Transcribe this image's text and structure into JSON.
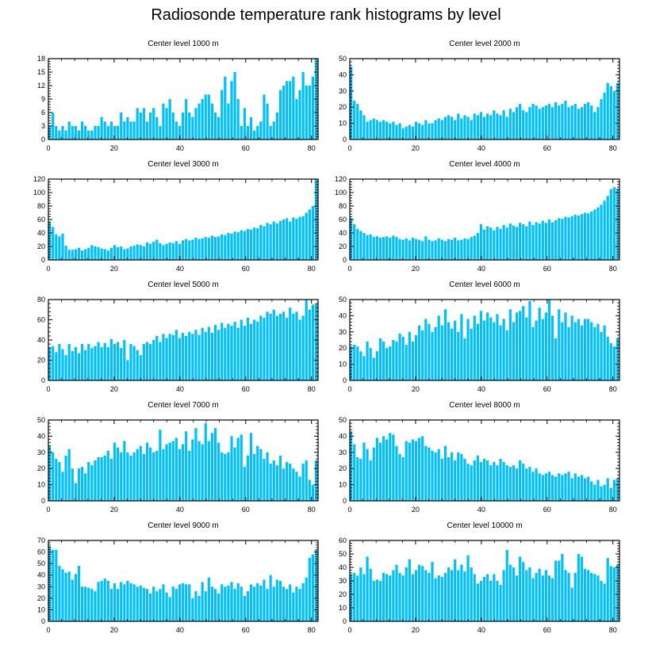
{
  "title": "Radiosonde temperature rank histograms by level",
  "chart_data": [
    {
      "type": "bar",
      "title": "Center level 1000 m",
      "ylim": [
        0,
        18
      ],
      "yticks": [
        0,
        3,
        6,
        9,
        12,
        15,
        18
      ],
      "xlim": [
        0,
        82
      ],
      "xticks": [
        0,
        20,
        40,
        60,
        80
      ],
      "bar_color": "#00bfff",
      "values": [
        3,
        6,
        3,
        2,
        3,
        2,
        4,
        3,
        3,
        2,
        4,
        3,
        2,
        2,
        3,
        3,
        5,
        4,
        3,
        4,
        3,
        3,
        6,
        4,
        5,
        4,
        4,
        7,
        6,
        7,
        4,
        6,
        7,
        5,
        3,
        8,
        7,
        9,
        6,
        4,
        3,
        6,
        9,
        6,
        5,
        7,
        8,
        9,
        10,
        10,
        8,
        6,
        5,
        11,
        14,
        8,
        13,
        15,
        9,
        3,
        7,
        3,
        5,
        2,
        3,
        4,
        10,
        8,
        3,
        4,
        6,
        11,
        12,
        13,
        13,
        14,
        9,
        11,
        15,
        12,
        12,
        14,
        18
      ]
    },
    {
      "type": "bar",
      "title": "Center level 2000 m",
      "ylim": [
        0,
        50
      ],
      "yticks": [
        0,
        10,
        20,
        30,
        40,
        50
      ],
      "xlim": [
        0,
        82
      ],
      "xticks": [
        0,
        20,
        40,
        60,
        80
      ],
      "bar_color": "#00bfff",
      "values": [
        45,
        24,
        22,
        18,
        15,
        11,
        12,
        13,
        12,
        11,
        12,
        11,
        10,
        11,
        9,
        10,
        7,
        8,
        9,
        8,
        11,
        10,
        9,
        12,
        10,
        10,
        12,
        13,
        12,
        14,
        15,
        14,
        12,
        16,
        13,
        15,
        14,
        12,
        16,
        15,
        17,
        14,
        16,
        15,
        18,
        16,
        15,
        18,
        14,
        19,
        17,
        20,
        22,
        18,
        17,
        20,
        22,
        21,
        19,
        20,
        21,
        22,
        20,
        23,
        21,
        22,
        24,
        20,
        21,
        22,
        19,
        20,
        22,
        23,
        21,
        17,
        20,
        25,
        29,
        35,
        33,
        30,
        35
      ]
    },
    {
      "type": "bar",
      "title": "Center level 3000 m",
      "ylim": [
        0,
        120
      ],
      "yticks": [
        0,
        20,
        40,
        60,
        80,
        100,
        120
      ],
      "xlim": [
        0,
        82
      ],
      "xticks": [
        0,
        20,
        40,
        60,
        80
      ],
      "bar_color": "#00bfff",
      "values": [
        57,
        49,
        38,
        35,
        39,
        21,
        15,
        15,
        16,
        18,
        14,
        16,
        18,
        22,
        20,
        19,
        17,
        16,
        14,
        18,
        22,
        19,
        20,
        16,
        17,
        20,
        21,
        23,
        22,
        20,
        26,
        24,
        27,
        30,
        25,
        22,
        24,
        26,
        25,
        28,
        24,
        29,
        31,
        29,
        30,
        33,
        31,
        32,
        34,
        33,
        36,
        34,
        35,
        38,
        37,
        40,
        39,
        42,
        41,
        44,
        43,
        46,
        45,
        48,
        47,
        52,
        50,
        55,
        53,
        57,
        54,
        58,
        60,
        62,
        57,
        63,
        61,
        64,
        65,
        70,
        75,
        80,
        120
      ]
    },
    {
      "type": "bar",
      "title": "Center level 4000 m",
      "ylim": [
        0,
        120
      ],
      "yticks": [
        0,
        20,
        40,
        60,
        80,
        100,
        120
      ],
      "xlim": [
        0,
        82
      ],
      "xticks": [
        0,
        20,
        40,
        60,
        80
      ],
      "bar_color": "#00bfff",
      "values": [
        62,
        53,
        46,
        43,
        40,
        37,
        38,
        34,
        35,
        33,
        34,
        35,
        33,
        36,
        34,
        31,
        30,
        32,
        29,
        33,
        31,
        30,
        28,
        35,
        30,
        28,
        29,
        32,
        30,
        28,
        31,
        30,
        33,
        29,
        30,
        32,
        31,
        34,
        36,
        40,
        53,
        45,
        50,
        48,
        44,
        49,
        46,
        52,
        48,
        54,
        51,
        49,
        55,
        53,
        50,
        57,
        52,
        56,
        54,
        58,
        55,
        60,
        56,
        59,
        62,
        61,
        64,
        63,
        65,
        67,
        66,
        68,
        70,
        69,
        72,
        75,
        78,
        82,
        88,
        95,
        105,
        108,
        106
      ]
    },
    {
      "type": "bar",
      "title": "Center level 5000 m",
      "ylim": [
        0,
        80
      ],
      "yticks": [
        0,
        20,
        40,
        60,
        80
      ],
      "xlim": [
        0,
        82
      ],
      "xticks": [
        0,
        20,
        40,
        60,
        80
      ],
      "bar_color": "#00bfff",
      "values": [
        33,
        34,
        28,
        36,
        31,
        25,
        36,
        29,
        33,
        27,
        36,
        30,
        36,
        32,
        34,
        38,
        33,
        37,
        33,
        41,
        36,
        38,
        32,
        40,
        20,
        36,
        34,
        30,
        25,
        36,
        38,
        36,
        40,
        44,
        38,
        46,
        42,
        46,
        45,
        50,
        42,
        47,
        44,
        48,
        46,
        50,
        45,
        52,
        48,
        53,
        47,
        55,
        50,
        57,
        52,
        56,
        54,
        58,
        52,
        60,
        54,
        62,
        56,
        60,
        58,
        64,
        62,
        68,
        66,
        70,
        64,
        66,
        68,
        62,
        72,
        66,
        68,
        60,
        64,
        80,
        70,
        75,
        76
      ]
    },
    {
      "type": "bar",
      "title": "Center level 6000 m",
      "ylim": [
        0,
        50
      ],
      "yticks": [
        0,
        10,
        20,
        30,
        40,
        50
      ],
      "xlim": [
        0,
        82
      ],
      "xticks": [
        0,
        20,
        40,
        60,
        80
      ],
      "bar_color": "#00bfff",
      "values": [
        21,
        22,
        21,
        18,
        15,
        24,
        20,
        14,
        18,
        26,
        24,
        20,
        21,
        25,
        24,
        29,
        27,
        22,
        30,
        24,
        28,
        34,
        31,
        38,
        35,
        30,
        33,
        40,
        34,
        44,
        36,
        32,
        37,
        30,
        41,
        26,
        38,
        32,
        40,
        35,
        43,
        37,
        42,
        39,
        36,
        41,
        34,
        38,
        31,
        44,
        36,
        42,
        43,
        46,
        39,
        49,
        33,
        37,
        45,
        38,
        42,
        50,
        40,
        26,
        44,
        36,
        42,
        33,
        40,
        36,
        38,
        34,
        38,
        38,
        36,
        33,
        35,
        30,
        34,
        27,
        23,
        21,
        26
      ]
    },
    {
      "type": "bar",
      "title": "Center level 7000 m",
      "ylim": [
        0,
        50
      ],
      "yticks": [
        0,
        10,
        20,
        30,
        40,
        50
      ],
      "xlim": [
        0,
        82
      ],
      "xticks": [
        0,
        20,
        40,
        60,
        80
      ],
      "bar_color": "#00bfff",
      "values": [
        34,
        30,
        26,
        24,
        18,
        28,
        32,
        20,
        11,
        20,
        21,
        17,
        24,
        22,
        25,
        27,
        27,
        28,
        31,
        26,
        36,
        33,
        30,
        37,
        30,
        28,
        30,
        32,
        34,
        29,
        36,
        33,
        30,
        31,
        44,
        32,
        35,
        36,
        37,
        39,
        32,
        35,
        43,
        31,
        38,
        45,
        37,
        35,
        48,
        37,
        42,
        45,
        36,
        30,
        29,
        30,
        40,
        33,
        39,
        41,
        21,
        28,
        42,
        29,
        34,
        32,
        26,
        30,
        23,
        25,
        22,
        28,
        20,
        24,
        23,
        20,
        18,
        15,
        23,
        25,
        13,
        10,
        25
      ]
    },
    {
      "type": "bar",
      "title": "Center level 8000 m",
      "ylim": [
        0,
        50
      ],
      "yticks": [
        0,
        10,
        20,
        30,
        40,
        50
      ],
      "xlim": [
        0,
        82
      ],
      "xticks": [
        0,
        20,
        40,
        60,
        80
      ],
      "bar_color": "#00bfff",
      "values": [
        43,
        35,
        27,
        26,
        36,
        32,
        25,
        33,
        39,
        36,
        40,
        38,
        42,
        41,
        34,
        29,
        27,
        37,
        36,
        38,
        37,
        39,
        40,
        34,
        33,
        31,
        30,
        32,
        26,
        34,
        27,
        30,
        25,
        30,
        29,
        26,
        23,
        22,
        25,
        28,
        24,
        26,
        25,
        22,
        24,
        22,
        26,
        24,
        22,
        21,
        22,
        20,
        25,
        23,
        20,
        21,
        18,
        20,
        17,
        16,
        17,
        18,
        16,
        15,
        17,
        16,
        17,
        18,
        14,
        17,
        15,
        16,
        14,
        15,
        12,
        10,
        13,
        9,
        10,
        14,
        8,
        13,
        14
      ]
    },
    {
      "type": "bar",
      "title": "Center level 9000 m",
      "ylim": [
        0,
        70
      ],
      "yticks": [
        0,
        10,
        20,
        30,
        40,
        50,
        60,
        70
      ],
      "xlim": [
        0,
        82
      ],
      "xticks": [
        0,
        20,
        40,
        60,
        80
      ],
      "bar_color": "#00bfff",
      "values": [
        65,
        62,
        62,
        48,
        45,
        42,
        43,
        36,
        41,
        48,
        30,
        30,
        29,
        28,
        26,
        34,
        35,
        37,
        35,
        28,
        33,
        28,
        34,
        32,
        35,
        33,
        32,
        30,
        31,
        29,
        28,
        24,
        30,
        26,
        28,
        32,
        25,
        21,
        30,
        28,
        32,
        33,
        32,
        32,
        20,
        26,
        22,
        34,
        26,
        38,
        30,
        28,
        24,
        32,
        30,
        31,
        34,
        28,
        33,
        30,
        22,
        26,
        32,
        30,
        33,
        31,
        36,
        28,
        40,
        30,
        36,
        35,
        30,
        28,
        32,
        25,
        30,
        28,
        33,
        38,
        55,
        58,
        62
      ]
    },
    {
      "type": "bar",
      "title": "Center level 10000 m",
      "ylim": [
        0,
        60
      ],
      "yticks": [
        0,
        10,
        20,
        30,
        40,
        50,
        60
      ],
      "xlim": [
        0,
        82
      ],
      "xticks": [
        0,
        20,
        40,
        60,
        80
      ],
      "bar_color": "#00bfff",
      "values": [
        35,
        36,
        34,
        40,
        35,
        48,
        39,
        30,
        31,
        30,
        36,
        35,
        34,
        38,
        42,
        36,
        34,
        40,
        46,
        35,
        38,
        42,
        41,
        38,
        36,
        44,
        32,
        34,
        33,
        36,
        40,
        38,
        46,
        38,
        42,
        37,
        49,
        40,
        35,
        28,
        30,
        33,
        35,
        30,
        35,
        30,
        27,
        38,
        53,
        42,
        40,
        34,
        48,
        44,
        38,
        40,
        32,
        36,
        39,
        34,
        38,
        34,
        32,
        45,
        45,
        50,
        38,
        36,
        25,
        36,
        50,
        48,
        39,
        38,
        36,
        35,
        34,
        30,
        28,
        47,
        41,
        40,
        42
      ]
    }
  ]
}
